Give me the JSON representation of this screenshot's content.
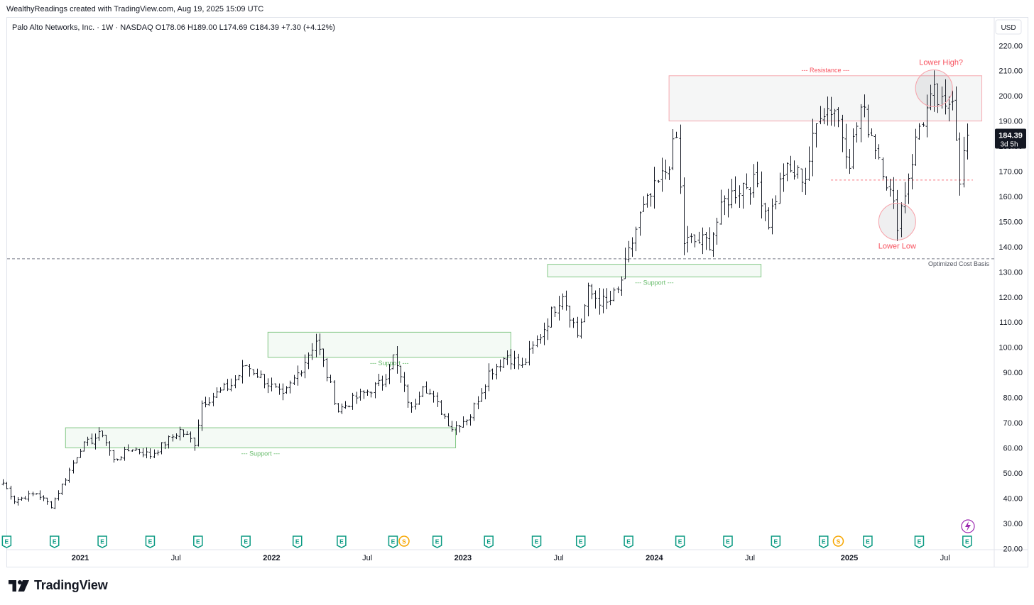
{
  "header": {
    "created_note": "WealthyReadings created with TradingView.com, Aug 19, 2025 15:09 UTC"
  },
  "footer": {
    "brand": "TradingView"
  },
  "chart_data": {
    "type": "ohlc",
    "title": "Palo Alto Networks, Inc. · 1W · NASDAQ",
    "legend": {
      "symbol": "Palo Alto Networks, Inc. · 1W · NASDAQ",
      "open": "O178.06",
      "high": "H189.00",
      "low": "L174.69",
      "close": "C184.39",
      "change": "+7.30 (+4.12%)"
    },
    "currency": "USD",
    "last_price": {
      "value": "184.39",
      "countdown": "3d 5h"
    },
    "ylim": [
      20,
      225
    ],
    "y_ticks": [
      "20.00",
      "30.00",
      "40.00",
      "50.00",
      "60.00",
      "70.00",
      "80.00",
      "90.00",
      "100.00",
      "110.00",
      "120.00",
      "130.00",
      "140.00",
      "150.00",
      "160.00",
      "170.00",
      "180.00",
      "190.00",
      "200.00",
      "210.00",
      "220.00"
    ],
    "x_ticks": [
      {
        "label": "2021",
        "date": "2021-01-04",
        "bold": true
      },
      {
        "label": "Jul",
        "date": "2021-07-05",
        "bold": false
      },
      {
        "label": "2022",
        "date": "2022-01-03",
        "bold": true
      },
      {
        "label": "Jul",
        "date": "2022-07-04",
        "bold": false
      },
      {
        "label": "2023",
        "date": "2023-01-02",
        "bold": true
      },
      {
        "label": "Jul",
        "date": "2023-07-03",
        "bold": false
      },
      {
        "label": "2024",
        "date": "2024-01-01",
        "bold": true
      },
      {
        "label": "Jul",
        "date": "2024-07-01",
        "bold": false
      },
      {
        "label": "2025",
        "date": "2025-01-06",
        "bold": true
      },
      {
        "label": "Jul",
        "date": "2025-07-07",
        "bold": false
      }
    ],
    "anchors": [
      [
        "2020-08-10",
        46
      ],
      [
        "2020-08-31",
        39
      ],
      [
        "2020-10-12",
        42
      ],
      [
        "2020-11-09",
        37
      ],
      [
        "2020-12-07",
        48
      ],
      [
        "2021-01-04",
        60
      ],
      [
        "2021-02-15",
        66
      ],
      [
        "2021-03-08",
        55
      ],
      [
        "2021-04-12",
        60
      ],
      [
        "2021-05-17",
        57
      ],
      [
        "2021-07-12",
        67
      ],
      [
        "2021-08-09",
        62
      ],
      [
        "2021-08-23",
        78
      ],
      [
        "2021-10-18",
        85
      ],
      [
        "2021-11-15",
        93
      ],
      [
        "2021-12-20",
        87
      ],
      [
        "2022-01-24",
        80
      ],
      [
        "2022-02-28",
        92
      ],
      [
        "2022-03-28",
        103
      ],
      [
        "2022-05-09",
        75
      ],
      [
        "2022-06-13",
        80
      ],
      [
        "2022-08-01",
        86
      ],
      [
        "2022-08-22",
        96
      ],
      [
        "2022-09-26",
        75
      ],
      [
        "2022-10-17",
        86
      ],
      [
        "2022-11-14",
        77
      ],
      [
        "2022-12-12",
        68
      ],
      [
        "2023-01-16",
        73
      ],
      [
        "2023-02-20",
        90
      ],
      [
        "2023-03-27",
        97
      ],
      [
        "2023-04-24",
        92
      ],
      [
        "2023-05-29",
        105
      ],
      [
        "2023-07-10",
        122
      ],
      [
        "2023-08-07",
        105
      ],
      [
        "2023-08-28",
        122
      ],
      [
        "2023-10-02",
        117
      ],
      [
        "2023-10-23",
        122
      ],
      [
        "2023-12-04",
        152
      ],
      [
        "2024-01-22",
        170
      ],
      [
        "2024-02-12",
        183
      ],
      [
        "2024-02-26",
        142
      ],
      [
        "2024-04-15",
        142
      ],
      [
        "2024-05-13",
        158
      ],
      [
        "2024-06-17",
        165
      ],
      [
        "2024-07-15",
        165
      ],
      [
        "2024-08-05",
        150
      ],
      [
        "2024-09-02",
        170
      ],
      [
        "2024-10-14",
        168
      ],
      [
        "2024-11-11",
        195
      ],
      [
        "2024-12-09",
        195
      ],
      [
        "2025-01-06",
        175
      ],
      [
        "2025-01-27",
        195
      ],
      [
        "2025-02-17",
        185
      ],
      [
        "2025-03-10",
        172
      ],
      [
        "2025-04-07",
        150
      ],
      [
        "2025-04-21",
        162
      ],
      [
        "2025-05-19",
        188
      ],
      [
        "2025-06-16",
        200
      ],
      [
        "2025-07-07",
        193
      ],
      [
        "2025-07-21",
        202
      ],
      [
        "2025-08-04",
        168
      ],
      [
        "2025-08-18",
        184.39
      ]
    ],
    "boxes": [
      {
        "name": "resistance",
        "from": "2024-01-29",
        "to": "2025-09-15",
        "low": 190,
        "high": 208,
        "label": "--- Resistance ---",
        "color": "#f23645"
      },
      {
        "name": "support-1",
        "from": "2023-06-12",
        "to": "2024-07-22",
        "low": 128,
        "high": 133,
        "label": "--- Support ---",
        "color": "#4caf50"
      },
      {
        "name": "support-2",
        "from": "2021-12-27",
        "to": "2023-04-03",
        "low": 96,
        "high": 106,
        "label": "--- Support ---",
        "color": "#4caf50"
      },
      {
        "name": "support-3",
        "from": "2020-12-07",
        "to": "2022-12-19",
        "low": 60,
        "high": 68,
        "label": "--- Support ---",
        "color": "#4caf50"
      }
    ],
    "annotations": [
      {
        "name": "lower-high",
        "label": "Lower High?",
        "date": "2025-06-16",
        "value": 203
      },
      {
        "name": "lower-low",
        "label": "Lower Low",
        "date": "2025-04-07",
        "value": 150
      }
    ],
    "cost_basis": {
      "label": "Optimized Cost Basis",
      "value": 135.2
    },
    "red_level": {
      "from": "2024-12-02",
      "value": 166.5
    },
    "events": [
      {
        "date": "2020-08-17",
        "type": "E"
      },
      {
        "date": "2020-11-16",
        "type": "E"
      },
      {
        "date": "2021-02-15",
        "type": "E"
      },
      {
        "date": "2021-05-17",
        "type": "E"
      },
      {
        "date": "2021-08-16",
        "type": "E"
      },
      {
        "date": "2021-11-15",
        "type": "E"
      },
      {
        "date": "2022-02-21",
        "type": "E"
      },
      {
        "date": "2022-05-16",
        "type": "E"
      },
      {
        "date": "2022-08-22",
        "type": "E"
      },
      {
        "date": "2022-09-12",
        "type": "S"
      },
      {
        "date": "2022-11-14",
        "type": "E"
      },
      {
        "date": "2023-02-20",
        "type": "E"
      },
      {
        "date": "2023-05-22",
        "type": "E"
      },
      {
        "date": "2023-08-14",
        "type": "E"
      },
      {
        "date": "2023-11-13",
        "type": "E"
      },
      {
        "date": "2024-02-19",
        "type": "E"
      },
      {
        "date": "2024-05-20",
        "type": "E"
      },
      {
        "date": "2024-08-19",
        "type": "E"
      },
      {
        "date": "2024-11-18",
        "type": "E"
      },
      {
        "date": "2024-12-16",
        "type": "S"
      },
      {
        "date": "2025-02-10",
        "type": "E"
      },
      {
        "date": "2025-05-19",
        "type": "E"
      },
      {
        "date": "2025-08-18",
        "type": "E"
      }
    ],
    "grid": false
  }
}
